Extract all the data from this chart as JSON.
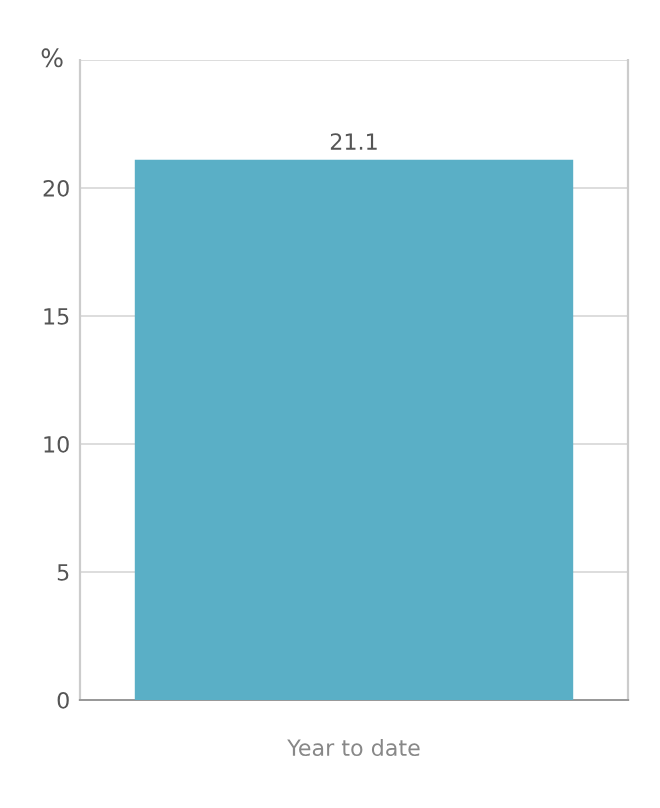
{
  "chart_data": {
    "type": "bar",
    "ylabel": "%",
    "categories": [
      "Year to date"
    ],
    "values": [
      21.1
    ],
    "color": "#5aafc6",
    "ylim": [
      0,
      25
    ],
    "yticks": [
      0,
      5,
      10,
      15,
      20,
      {
        "value": 25,
        "label": null
      }
    ],
    "grid": "y",
    "data_labels": true,
    "legend": false
  }
}
